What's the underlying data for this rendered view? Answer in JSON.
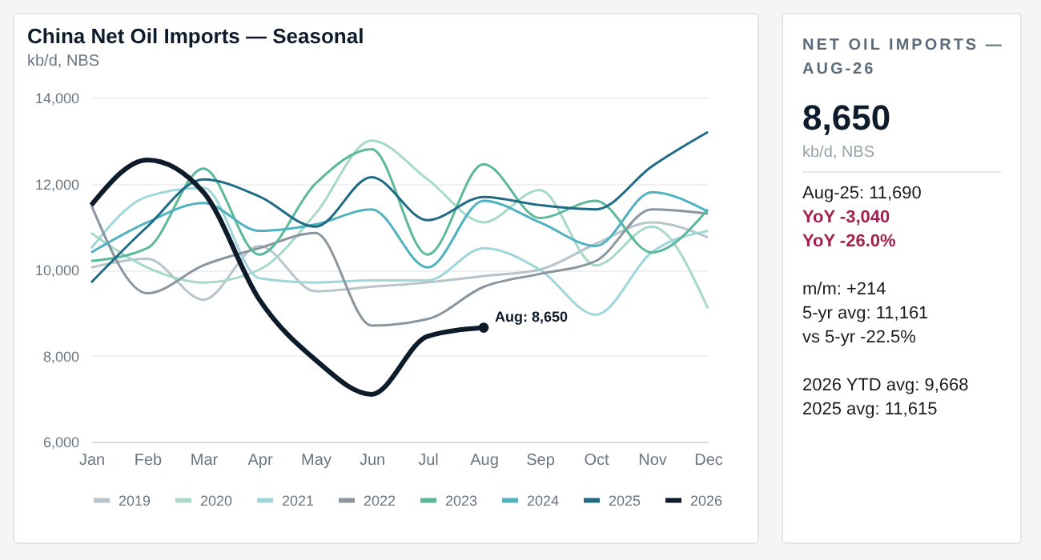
{
  "chart_data": [
    {
      "type": "line",
      "title": "China Net Oil Imports — Seasonal",
      "subtitle": "kb/d, NBS",
      "categories": [
        "Jan",
        "Feb",
        "Mar",
        "Apr",
        "May",
        "Jun",
        "Jul",
        "Aug",
        "Sep",
        "Oct",
        "Nov",
        "Dec"
      ],
      "ylim": [
        6000,
        14000
      ],
      "yticks": [
        {
          "value": 6000,
          "label": "6,000"
        },
        {
          "value": 8000,
          "label": "8,000"
        },
        {
          "value": 10000,
          "label": "10,000"
        },
        {
          "value": 12000,
          "label": "12,000"
        },
        {
          "value": 14000,
          "label": "14,000"
        }
      ],
      "grid": "y",
      "legend": "bottom",
      "marker": "none",
      "line_style": "solid",
      "series": [
        {
          "name": "2019",
          "color": "#b8c4cc",
          "values": [
            10050,
            10250,
            9300,
            10550,
            9500,
            9600,
            9700,
            9850,
            10000,
            10600,
            11100,
            10750
          ]
        },
        {
          "name": "2020",
          "color": "#a8d8c8",
          "values": [
            10850,
            10050,
            9700,
            10000,
            11300,
            13000,
            12100,
            11100,
            11850,
            10100,
            11000,
            9100
          ]
        },
        {
          "name": "2021",
          "color": "#9ed6dc",
          "values": [
            10500,
            11700,
            11900,
            9800,
            9700,
            9750,
            9750,
            10500,
            10000,
            8950,
            10400,
            10900
          ]
        },
        {
          "name": "2022",
          "color": "#8a959e",
          "values": [
            11500,
            9450,
            10100,
            10500,
            10850,
            8700,
            8850,
            9600,
            9900,
            10200,
            11400,
            11300
          ]
        },
        {
          "name": "2023",
          "color": "#5bb89a",
          "values": [
            10200,
            10500,
            12350,
            10350,
            12000,
            12800,
            10350,
            12450,
            11200,
            11600,
            10400,
            11400
          ]
        },
        {
          "name": "2024",
          "color": "#4fb3bf",
          "values": [
            10400,
            11100,
            11550,
            10900,
            11050,
            11400,
            10050,
            11600,
            11100,
            10550,
            11800,
            11350
          ]
        },
        {
          "name": "2025",
          "color": "#1f6b85",
          "values": [
            9700,
            11000,
            12100,
            11700,
            11000,
            12150,
            11150,
            11690,
            11500,
            11400,
            12400,
            13200
          ]
        },
        {
          "name": "2026",
          "color": "#0d1b2a",
          "values": [
            11500,
            12550,
            11800,
            9300,
            7900,
            7100,
            8450,
            8650,
            null,
            null,
            null,
            null
          ]
        }
      ],
      "annotations": [
        {
          "text": "Aug: 8,650",
          "x": "Aug",
          "y": 8650
        }
      ]
    },
    {
      "type": "other",
      "title": "NET OIL IMPORTS — AUG-26",
      "subtitle": "kb/d, NBS",
      "annotations": [
        "8,650",
        "Aug-25: 11,690",
        "YoY -3,040",
        "YoY -26.0%",
        "m/m: +214",
        "5-yr avg: 11,161",
        "vs 5-yr -22.5%",
        "2026 YTD avg: 9,668",
        "2025 avg: 11,615"
      ]
    }
  ]
}
